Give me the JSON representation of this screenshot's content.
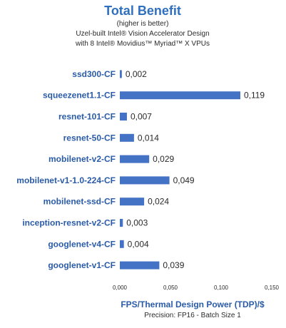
{
  "chart_data": {
    "type": "bar",
    "orientation": "horizontal",
    "title": "Total Benefit",
    "subtitle_lines": [
      "(higher is better)",
      "Uzel-built Intel® Vision Accelerator Design",
      "with 8 Intel® Movidius™ Myriad™ X VPUs"
    ],
    "categories": [
      "ssd300-CF",
      "squeezenet1.1-CF",
      "resnet-101-CF",
      "resnet-50-CF",
      "mobilenet-v2-CF",
      "mobilenet-v1-1.0-224-CF",
      "mobilenet-ssd-CF",
      "inception-resnet-v2-CF",
      "googlenet-v4-CF",
      "googlenet-v1-CF"
    ],
    "values": [
      0.002,
      0.119,
      0.007,
      0.014,
      0.029,
      0.049,
      0.024,
      0.003,
      0.004,
      0.039
    ],
    "value_labels": [
      "0,002",
      "0,119",
      "0,007",
      "0,014",
      "0,029",
      "0,049",
      "0,024",
      "0,003",
      "0,004",
      "0,039"
    ],
    "xlabel": "FPS/Thermal Design Power (TDP)/$",
    "footnote": "Precision: FP16 - Batch Size 1",
    "xlim": [
      0,
      0.15
    ],
    "x_ticks": [
      0,
      0.05,
      0.1,
      0.15
    ],
    "x_tick_labels": [
      "0,000",
      "0,050",
      "0,100",
      "0,150"
    ],
    "grid": false,
    "colors": {
      "bar": "#4472c4",
      "title": "#2f6fc0",
      "category": "#2a5ba8"
    }
  }
}
